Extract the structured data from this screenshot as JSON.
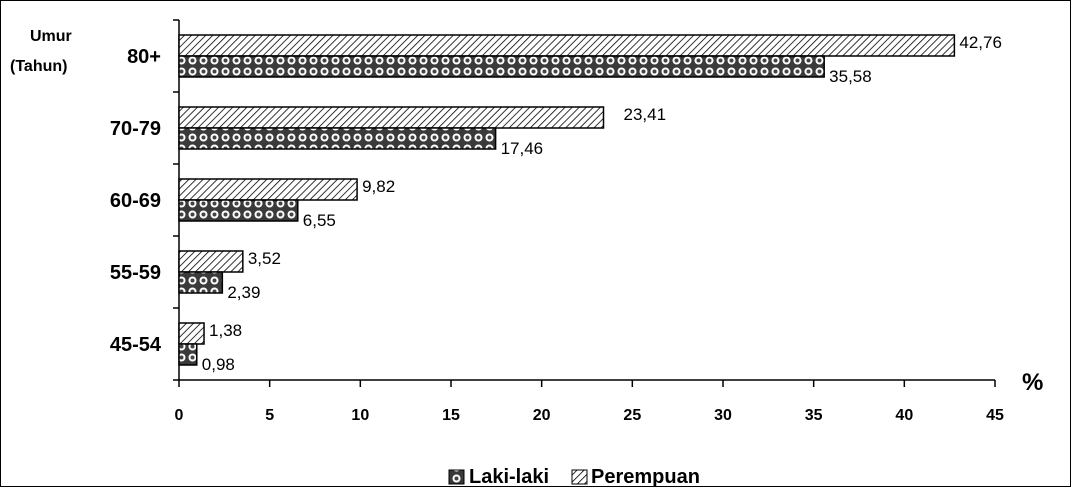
{
  "chart_data": {
    "type": "bar",
    "orientation": "horizontal",
    "ylabel_lines": [
      "Umur",
      "(Tahun)"
    ],
    "xlabel": "%",
    "categories": [
      "80+",
      "70-79",
      "60-69",
      "55-59",
      "45-54"
    ],
    "series": [
      {
        "name": "Perempuan",
        "values": [
          42.76,
          23.41,
          9.82,
          3.52,
          1.38
        ],
        "labels": [
          "42,76",
          "23,41",
          "9,82",
          "3,52",
          "1,38"
        ],
        "pattern": "hatch"
      },
      {
        "name": "Laki-laki",
        "values": [
          35.58,
          17.46,
          6.55,
          2.39,
          0.98
        ],
        "labels": [
          "35,58",
          "17,46",
          "6,55",
          "2,39",
          "0,98"
        ],
        "pattern": "dots"
      }
    ],
    "xlim": [
      0,
      45
    ],
    "xticks": [
      "0",
      "5",
      "10",
      "15",
      "20",
      "25",
      "30",
      "35",
      "40",
      "45"
    ],
    "grid": false,
    "legend_position": "bottom"
  }
}
